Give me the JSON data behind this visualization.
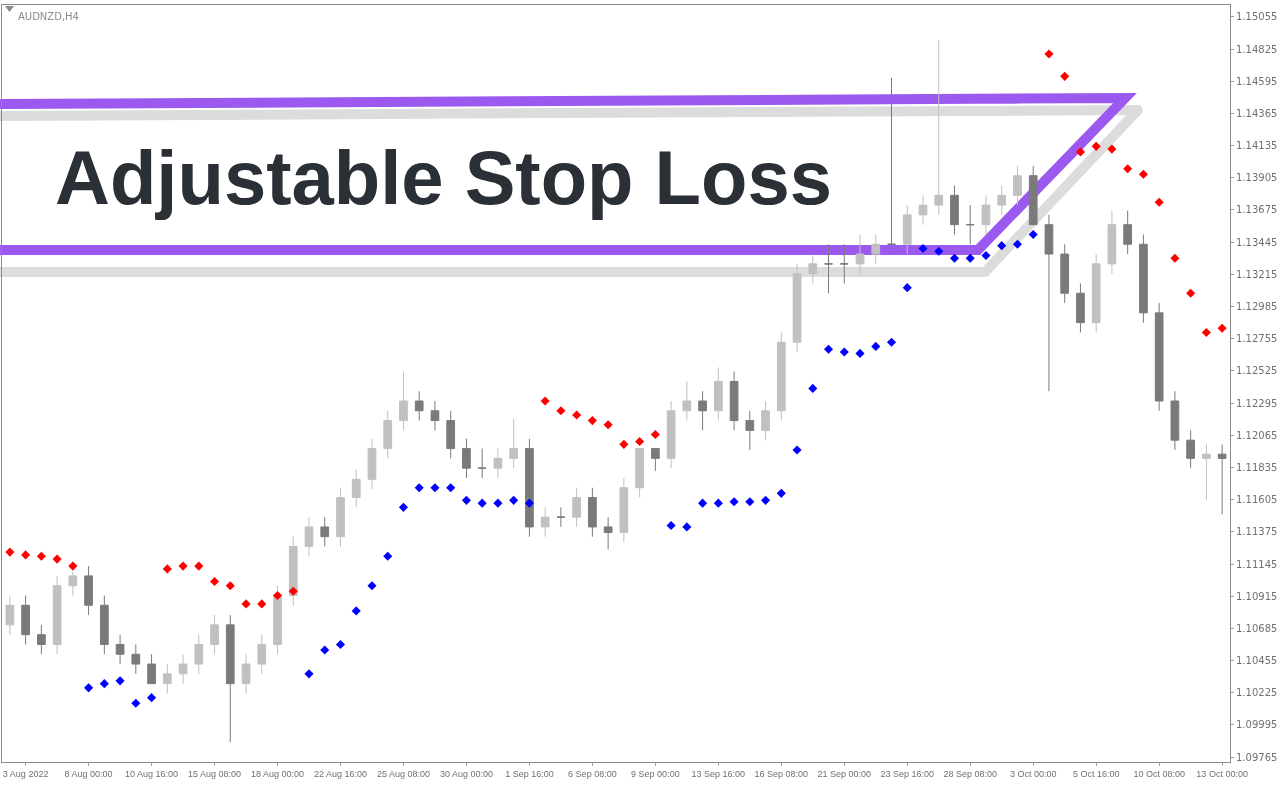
{
  "chart_data": {
    "type": "candlestick",
    "title": "Adjustable Stop Loss",
    "annotations": [
      "AUDNZD,H4"
    ],
    "categories": [
      null,
      "3 Aug 2022",
      null,
      null,
      null,
      "8 Aug 00:00",
      null,
      null,
      null,
      "10 Aug 16:00",
      null,
      null,
      null,
      "15 Aug 08:00",
      null,
      null,
      null,
      "18 Aug 00:00",
      null,
      null,
      null,
      "22 Aug 16:00",
      null,
      null,
      null,
      "25 Aug 08:00",
      null,
      null,
      null,
      "30 Aug 00:00",
      null,
      null,
      null,
      "1 Sep 16:00",
      null,
      null,
      null,
      "6 Sep 08:00",
      null,
      null,
      null,
      "9 Sep 00:00",
      null,
      null,
      null,
      "13 Sep 16:00",
      null,
      null,
      null,
      "16 Sep 08:00",
      null,
      null,
      null,
      "21 Sep 00:00",
      null,
      null,
      null,
      "23 Sep 16:00",
      null,
      null,
      null,
      "28 Sep 08:00",
      null,
      null,
      null,
      "3 Oct 00:00",
      null,
      null,
      null,
      "5 Oct 16:00",
      null,
      null,
      null,
      "10 Oct 08:00",
      null,
      null,
      null,
      "13 Oct 00:00"
    ],
    "ylim": [
      1.0973,
      1.1514
    ],
    "yticks": [
      1.09765,
      1.09995,
      1.10225,
      1.10455,
      1.10685,
      1.10915,
      1.11145,
      1.11375,
      1.11605,
      1.11835,
      1.12065,
      1.12295,
      1.12525,
      1.12755,
      1.12985,
      1.13215,
      1.13445,
      1.13675,
      1.13905,
      1.14135,
      1.14365,
      1.14595,
      1.14825,
      1.15055
    ],
    "grid": false,
    "marker": "diamond",
    "series": [
      {
        "type": "candlestick",
        "ohlc": [
          [
            1.1071,
            1.1092,
            1.1064,
            1.1085
          ],
          [
            1.1085,
            1.1092,
            1.1057,
            1.1064
          ],
          [
            1.1064,
            1.1071,
            1.105,
            1.1057
          ],
          [
            1.1057,
            1.1106,
            1.105,
            1.1099
          ],
          [
            1.1099,
            1.1109,
            1.1092,
            1.1106
          ],
          [
            1.1106,
            1.1113,
            1.1078,
            1.1085
          ],
          [
            1.1085,
            1.1092,
            1.105,
            1.1057
          ],
          [
            1.1057,
            1.1064,
            1.1043,
            1.105
          ],
          [
            1.105,
            1.1057,
            1.1036,
            1.1043
          ],
          [
            1.1043,
            1.105,
            1.1029,
            1.1029
          ],
          [
            1.1029,
            1.1043,
            1.1022,
            1.1036
          ],
          [
            1.1036,
            1.105,
            1.1029,
            1.1043
          ],
          [
            1.1043,
            1.1064,
            1.1036,
            1.1057
          ],
          [
            1.1057,
            1.1078,
            1.105,
            1.1071
          ],
          [
            1.1071,
            1.1078,
            1.0987,
            1.1029
          ],
          [
            1.1029,
            1.105,
            1.1022,
            1.1043
          ],
          [
            1.1043,
            1.1064,
            1.1036,
            1.1057
          ],
          [
            1.1057,
            1.1099,
            1.105,
            1.1092
          ],
          [
            1.1092,
            1.1134,
            1.1085,
            1.1127
          ],
          [
            1.1127,
            1.1148,
            1.112,
            1.1141
          ],
          [
            1.1141,
            1.1148,
            1.1127,
            1.1134
          ],
          [
            1.1134,
            1.1169,
            1.1127,
            1.1162
          ],
          [
            1.1162,
            1.1182,
            1.1155,
            1.1175
          ],
          [
            1.1175,
            1.1204,
            1.1168,
            1.1197
          ],
          [
            1.1197,
            1.1224,
            1.119,
            1.1217
          ],
          [
            1.1217,
            1.1252,
            1.121,
            1.1231
          ],
          [
            1.1231,
            1.1238,
            1.1217,
            1.1224
          ],
          [
            1.1224,
            1.1231,
            1.121,
            1.1217
          ],
          [
            1.1217,
            1.1224,
            1.119,
            1.1197
          ],
          [
            1.1197,
            1.1204,
            1.1176,
            1.1183
          ],
          [
            1.1183,
            1.1197,
            1.1176,
            1.1183
          ],
          [
            1.1183,
            1.1197,
            1.1176,
            1.119
          ],
          [
            1.119,
            1.1218,
            1.1183,
            1.1197
          ],
          [
            1.1197,
            1.1204,
            1.1134,
            1.1141
          ],
          [
            1.1141,
            1.1155,
            1.1134,
            1.1148
          ],
          [
            1.1148,
            1.1155,
            1.1141,
            1.1148
          ],
          [
            1.1148,
            1.1169,
            1.1141,
            1.1162
          ],
          [
            1.1162,
            1.1169,
            1.1134,
            1.1141
          ],
          [
            1.1141,
            1.1148,
            1.1125,
            1.1137
          ],
          [
            1.1137,
            1.1176,
            1.113,
            1.1169
          ],
          [
            1.1169,
            1.1197,
            1.1162,
            1.1197
          ],
          [
            1.1197,
            1.1197,
            1.1181,
            1.119
          ],
          [
            1.119,
            1.1231,
            1.1183,
            1.1224
          ],
          [
            1.1224,
            1.1245,
            1.1217,
            1.1231
          ],
          [
            1.1231,
            1.1238,
            1.121,
            1.1224
          ],
          [
            1.1224,
            1.1255,
            1.1217,
            1.1245
          ],
          [
            1.1245,
            1.1252,
            1.121,
            1.1217
          ],
          [
            1.1217,
            1.1224,
            1.1196,
            1.121
          ],
          [
            1.121,
            1.1231,
            1.1203,
            1.1224
          ],
          [
            1.1224,
            1.128,
            1.1217,
            1.1273
          ],
          [
            1.1273,
            1.1329,
            1.1266,
            1.1322
          ],
          [
            1.1322,
            1.1336,
            1.1315,
            1.1329
          ],
          [
            1.1329,
            1.1343,
            1.1308,
            1.1329
          ],
          [
            1.1329,
            1.1343,
            1.1315,
            1.1329
          ],
          [
            1.1329,
            1.135,
            1.1322,
            1.1336
          ],
          [
            1.1336,
            1.135,
            1.1329,
            1.1343
          ],
          [
            1.1343,
            1.1462,
            1.1336,
            1.1343
          ],
          [
            1.1343,
            1.1371,
            1.1336,
            1.1364
          ],
          [
            1.1364,
            1.1378,
            1.1357,
            1.1371
          ],
          [
            1.1371,
            1.1489,
            1.1364,
            1.1378
          ],
          [
            1.1378,
            1.1385,
            1.135,
            1.1357
          ],
          [
            1.1357,
            1.1371,
            1.1343,
            1.1357
          ],
          [
            1.1357,
            1.1378,
            1.135,
            1.1371
          ],
          [
            1.1371,
            1.1385,
            1.1364,
            1.1378
          ],
          [
            1.1378,
            1.1399,
            1.1371,
            1.1392
          ],
          [
            1.1392,
            1.1399,
            1.1357,
            1.1357
          ],
          [
            1.1357,
            1.1364,
            1.1238,
            1.1336
          ],
          [
            1.1336,
            1.1343,
            1.1301,
            1.1308
          ],
          [
            1.1308,
            1.1315,
            1.128,
            1.1287
          ],
          [
            1.1287,
            1.1336,
            1.128,
            1.1329
          ],
          [
            1.1329,
            1.1367,
            1.1322,
            1.1357
          ],
          [
            1.1357,
            1.1367,
            1.1336,
            1.1343
          ],
          [
            1.1343,
            1.135,
            1.1287,
            1.1294
          ],
          [
            1.1294,
            1.1301,
            1.1224,
            1.1231
          ],
          [
            1.1231,
            1.1238,
            1.1196,
            1.1203
          ],
          [
            1.1203,
            1.121,
            1.1183,
            1.119
          ],
          [
            1.119,
            1.12,
            1.116,
            1.1193
          ],
          [
            1.1193,
            1.12,
            1.115,
            1.119
          ]
        ],
        "colors": [
          "#c0c0c0",
          "#7a7a7a",
          "#7a7a7a",
          "#c0c0c0",
          "#c0c0c0",
          "#7a7a7a",
          "#7a7a7a",
          "#7a7a7a",
          "#7a7a7a",
          "#7a7a7a",
          "#c0c0c0",
          "#c0c0c0",
          "#c0c0c0",
          "#c0c0c0",
          "#7a7a7a",
          "#c0c0c0",
          "#c0c0c0",
          "#c0c0c0",
          "#c0c0c0",
          "#c0c0c0",
          "#7a7a7a",
          "#c0c0c0",
          "#c0c0c0",
          "#c0c0c0",
          "#c0c0c0",
          "#c0c0c0",
          "#7a7a7a",
          "#7a7a7a",
          "#7a7a7a",
          "#7a7a7a",
          "#7a7a7a",
          "#c0c0c0",
          "#c0c0c0",
          "#7a7a7a",
          "#c0c0c0",
          "#7a7a7a",
          "#c0c0c0",
          "#7a7a7a",
          "#7a7a7a",
          "#c0c0c0",
          "#c0c0c0",
          "#7a7a7a",
          "#c0c0c0",
          "#c0c0c0",
          "#7a7a7a",
          "#c0c0c0",
          "#7a7a7a",
          "#7a7a7a",
          "#c0c0c0",
          "#c0c0c0",
          "#c0c0c0",
          "#c0c0c0",
          "#7a7a7a",
          "#7a7a7a",
          "#c0c0c0",
          "#c0c0c0",
          "#7a7a7a",
          "#c0c0c0",
          "#c0c0c0",
          "#c0c0c0",
          "#7a7a7a",
          "#7a7a7a",
          "#c0c0c0",
          "#c0c0c0",
          "#c0c0c0",
          "#7a7a7a",
          "#7a7a7a",
          "#7a7a7a",
          "#7a7a7a",
          "#c0c0c0",
          "#c0c0c0",
          "#7a7a7a",
          "#7a7a7a",
          "#7a7a7a",
          "#7a7a7a",
          "#7a7a7a",
          "#c0c0c0",
          "#7a7a7a"
        ]
      },
      {
        "type": "scatter",
        "color": "#ff0000",
        "values": [
          1.1123,
          1.1121,
          1.112,
          1.1118,
          1.1113,
          null,
          null,
          null,
          null,
          null,
          1.1111,
          1.1113,
          1.1113,
          1.1102,
          1.1099,
          1.1086,
          1.1086,
          1.1092,
          1.1095,
          null,
          null,
          null,
          null,
          null,
          null,
          null,
          null,
          null,
          null,
          null,
          null,
          null,
          null,
          null,
          1.1231,
          1.1224,
          1.1221,
          1.1217,
          1.1214,
          1.12,
          1.1202,
          1.1207,
          null,
          null,
          null,
          null,
          null,
          null,
          null,
          null,
          null,
          null,
          null,
          null,
          null,
          null,
          null,
          null,
          null,
          null,
          null,
          null,
          null,
          null,
          null,
          null,
          1.1479,
          1.1463,
          1.1409,
          1.1413,
          1.1411,
          1.1397,
          1.1393,
          1.1373,
          1.1333,
          1.1308,
          1.128,
          1.1283
        ]
      },
      {
        "type": "scatter",
        "color": "#0000ff",
        "values": [
          null,
          null,
          null,
          null,
          null,
          1.1026,
          1.1029,
          1.1031,
          1.1015,
          1.1019,
          null,
          null,
          null,
          null,
          null,
          null,
          null,
          null,
          null,
          1.1036,
          1.1053,
          1.1057,
          1.1081,
          1.1099,
          1.112,
          1.1155,
          1.1169,
          1.1169,
          1.1169,
          1.116,
          1.1158,
          1.1158,
          1.116,
          1.1158,
          null,
          null,
          null,
          null,
          null,
          null,
          null,
          null,
          1.1142,
          1.1141,
          1.1158,
          1.1158,
          1.1159,
          1.1159,
          1.116,
          1.1165,
          1.1196,
          1.124,
          1.1268,
          1.1266,
          1.1265,
          1.127,
          1.1273,
          1.1312,
          1.134,
          1.1338,
          1.1333,
          1.1333,
          1.1335,
          1.1342,
          1.1343,
          1.135,
          null,
          null,
          null,
          null,
          null,
          null,
          null,
          null,
          null,
          null,
          null,
          null
        ]
      }
    ]
  }
}
